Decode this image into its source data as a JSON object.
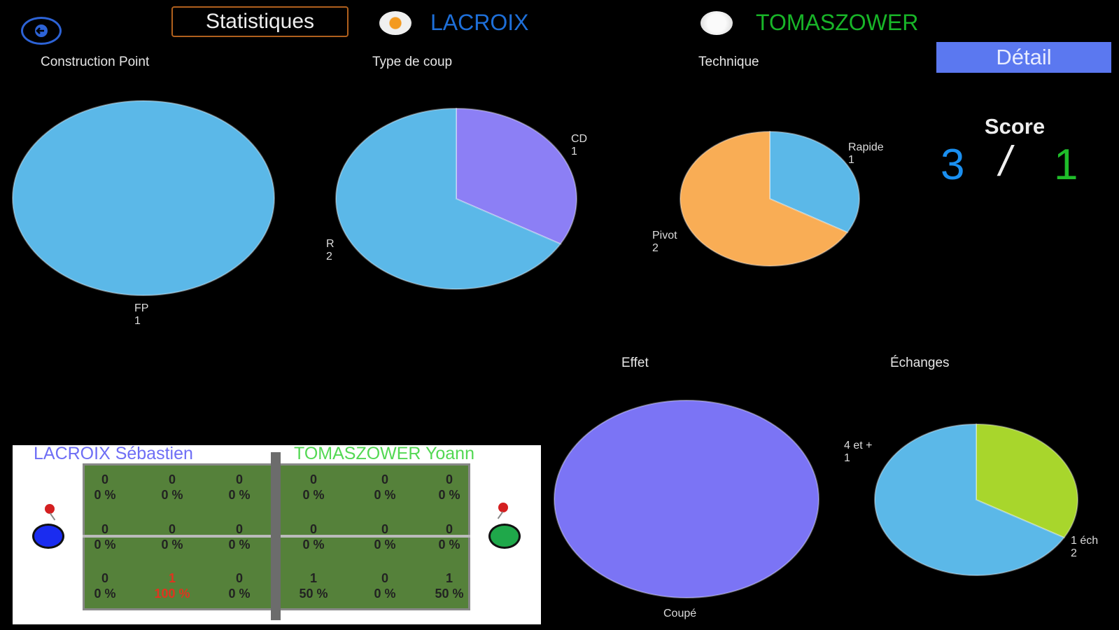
{
  "header": {
    "back_icon": "back-arrow-icon",
    "title_button": "Statistiques",
    "player1": "LACROIX",
    "player2": "TOMASZOWER",
    "detail_button": "Détail"
  },
  "sections": {
    "construction": "Construction Point",
    "type_coup": "Type de coup",
    "technique": "Technique",
    "effet": "Effet",
    "echanges": "Échanges"
  },
  "score": {
    "title": "Score",
    "p1": "3",
    "separator": "/",
    "p2": "1",
    "p1_color": "#1a8ff0",
    "p2_color": "#1fbd2a"
  },
  "chart_data": [
    {
      "type": "pie",
      "title": "Construction Point",
      "labels": [
        "FP"
      ],
      "values": [
        1
      ],
      "colors": [
        "#5bb8e8"
      ],
      "value_labels": [
        "1"
      ]
    },
    {
      "type": "pie",
      "title": "Type de coup",
      "labels": [
        "CD",
        "R"
      ],
      "values": [
        1,
        2
      ],
      "colors": [
        "#8c7ff5",
        "#5bb8e8"
      ],
      "value_labels": [
        "1",
        "2"
      ]
    },
    {
      "type": "pie",
      "title": "Technique",
      "labels": [
        "Rapide",
        "Pivot"
      ],
      "values": [
        1,
        2
      ],
      "colors": [
        "#5bb8e8",
        "#f9ad55"
      ],
      "value_labels": [
        "1",
        "2"
      ]
    },
    {
      "type": "pie",
      "title": "Effet",
      "labels": [
        "Coupé"
      ],
      "values": [
        1
      ],
      "colors": [
        "#7b74f5"
      ],
      "value_labels": [
        ""
      ]
    },
    {
      "type": "pie",
      "title": "Échanges",
      "labels": [
        "4 et +",
        "1 éch"
      ],
      "values": [
        1,
        2
      ],
      "colors": [
        "#a8d62c",
        "#5bb8e8"
      ],
      "value_labels": [
        "1",
        "2"
      ]
    }
  ],
  "court": {
    "player1_full": "LACROIX Sébastien",
    "player2_full": "TOMASZOWER Yoann",
    "zones": [
      [
        {
          "count": "0",
          "pct": "0 %"
        },
        {
          "count": "0",
          "pct": "0 %"
        },
        {
          "count": "0",
          "pct": "0 %"
        },
        {
          "count": "0",
          "pct": "0 %"
        },
        {
          "count": "0",
          "pct": "0 %"
        },
        {
          "count": "0",
          "pct": "0 %"
        }
      ],
      [
        {
          "count": "0",
          "pct": "0 %"
        },
        {
          "count": "0",
          "pct": "0 %"
        },
        {
          "count": "0",
          "pct": "0 %"
        },
        {
          "count": "0",
          "pct": "0 %"
        },
        {
          "count": "0",
          "pct": "0 %"
        },
        {
          "count": "0",
          "pct": "0 %"
        }
      ],
      [
        {
          "count": "0",
          "pct": "0 %"
        },
        {
          "count": "1",
          "pct": "100 %",
          "highlight": true
        },
        {
          "count": "0",
          "pct": "0 %"
        },
        {
          "count": "1",
          "pct": "50 %"
        },
        {
          "count": "0",
          "pct": "0 %"
        },
        {
          "count": "1",
          "pct": "50 %"
        }
      ]
    ],
    "player1_color": "#1a2cf0",
    "player2_color": "#1fa84a"
  }
}
